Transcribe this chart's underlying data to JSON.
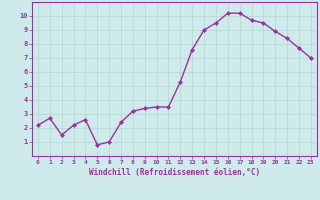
{
  "x": [
    0,
    1,
    2,
    3,
    4,
    5,
    6,
    7,
    8,
    9,
    10,
    11,
    12,
    13,
    14,
    15,
    16,
    17,
    18,
    19,
    20,
    21,
    22,
    23
  ],
  "y": [
    2.2,
    2.7,
    1.5,
    2.2,
    2.6,
    0.8,
    1.0,
    2.4,
    3.2,
    3.4,
    3.5,
    3.5,
    5.3,
    7.6,
    9.0,
    9.5,
    10.2,
    10.2,
    9.7,
    9.5,
    8.9,
    8.4,
    7.7,
    7.0
  ],
  "line_color": "#993399",
  "marker": "D",
  "marker_size": 2.0,
  "line_width": 1.0,
  "bg_color": "#ceeaea",
  "grid_color": "#b8d8d8",
  "xlabel": "Windchill (Refroidissement éolien,°C)",
  "xlabel_color": "#993399",
  "tick_color": "#993399",
  "axis_color": "#993399",
  "ylim": [
    0,
    11
  ],
  "xlim": [
    -0.5,
    23.5
  ],
  "yticks": [
    1,
    2,
    3,
    4,
    5,
    6,
    7,
    8,
    9,
    10
  ],
  "xticks": [
    0,
    1,
    2,
    3,
    4,
    5,
    6,
    7,
    8,
    9,
    10,
    11,
    12,
    13,
    14,
    15,
    16,
    17,
    18,
    19,
    20,
    21,
    22,
    23
  ],
  "xtick_labels": [
    "0",
    "1",
    "2",
    "3",
    "4",
    "5",
    "6",
    "7",
    "8",
    "9",
    "10",
    "11",
    "12",
    "13",
    "14",
    "15",
    "16",
    "17",
    "18",
    "19",
    "20",
    "21",
    "22",
    "23"
  ],
  "ytick_labels": [
    "1",
    "2",
    "3",
    "4",
    "5",
    "6",
    "7",
    "8",
    "9",
    "10"
  ]
}
